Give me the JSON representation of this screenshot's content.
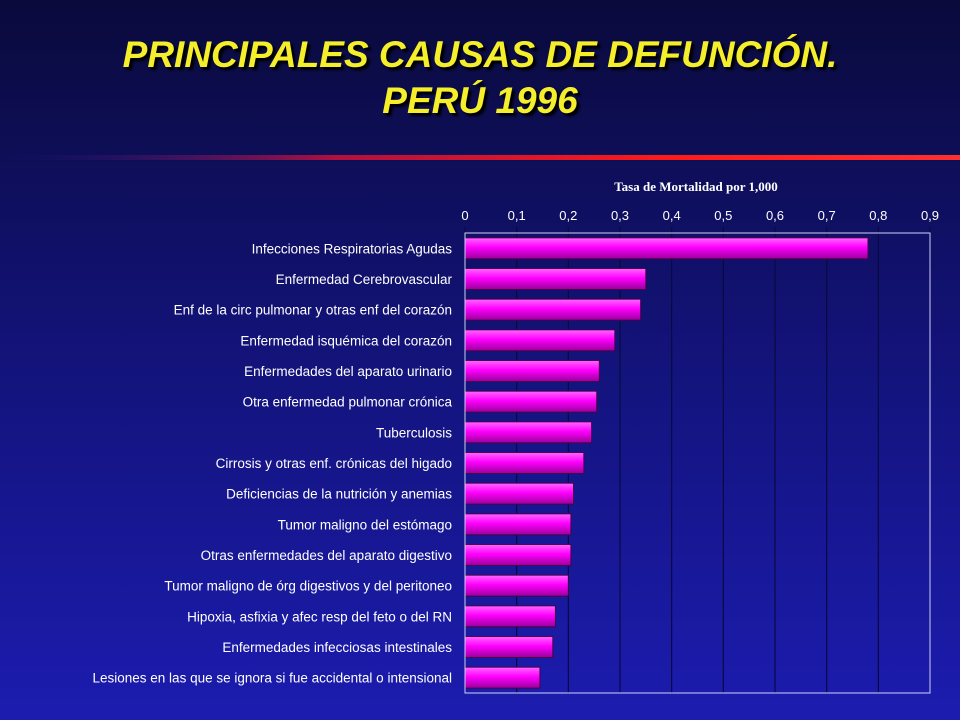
{
  "title": {
    "line1": "PRINCIPALES CAUSAS DE DEFUNCIÓN.",
    "line2": "PERÚ 1996"
  },
  "colors": {
    "title": "#f5ee2a",
    "bar": "#ff00ff",
    "bar_dark": "#9a009a",
    "divider": "#ff1a1a",
    "background": "#1414a0"
  },
  "chart_data": {
    "type": "bar",
    "orientation": "horizontal",
    "xlabel": "Tasa de Mortalidad por 1,000",
    "xlim": [
      0,
      0.9
    ],
    "xticks": [
      "0",
      "0,1",
      "0,2",
      "0,3",
      "0,4",
      "0,5",
      "0,6",
      "0,7",
      "0,8",
      "0,9"
    ],
    "x_axis_position": "top",
    "grid": true,
    "categories": [
      "Infecciones Respiratorias Agudas",
      "Enfermedad Cerebrovascular",
      "Enf de la circ pulmonar y otras enf del corazón",
      "Enfermedad isquémica del corazón",
      "Enfermedades del aparato urinario",
      "Otra enfermedad pulmonar crónica",
      "Tuberculosis",
      "Cirrosis y otras enf. crónicas del higado",
      "Deficiencias de la nutrición y anemias",
      "Tumor maligno del estómago",
      "Otras enfermedades del aparato digestivo",
      "Tumor maligno de órg digestivos y del peritoneo",
      "Hipoxia, asfixia y afec resp del feto o del RN",
      "Enfermedades infecciosas intestinales",
      "Lesiones en las que se ignora si fue accidental o intensional"
    ],
    "values": [
      0.78,
      0.35,
      0.34,
      0.29,
      0.26,
      0.255,
      0.245,
      0.23,
      0.21,
      0.205,
      0.205,
      0.2,
      0.175,
      0.17,
      0.145
    ]
  }
}
